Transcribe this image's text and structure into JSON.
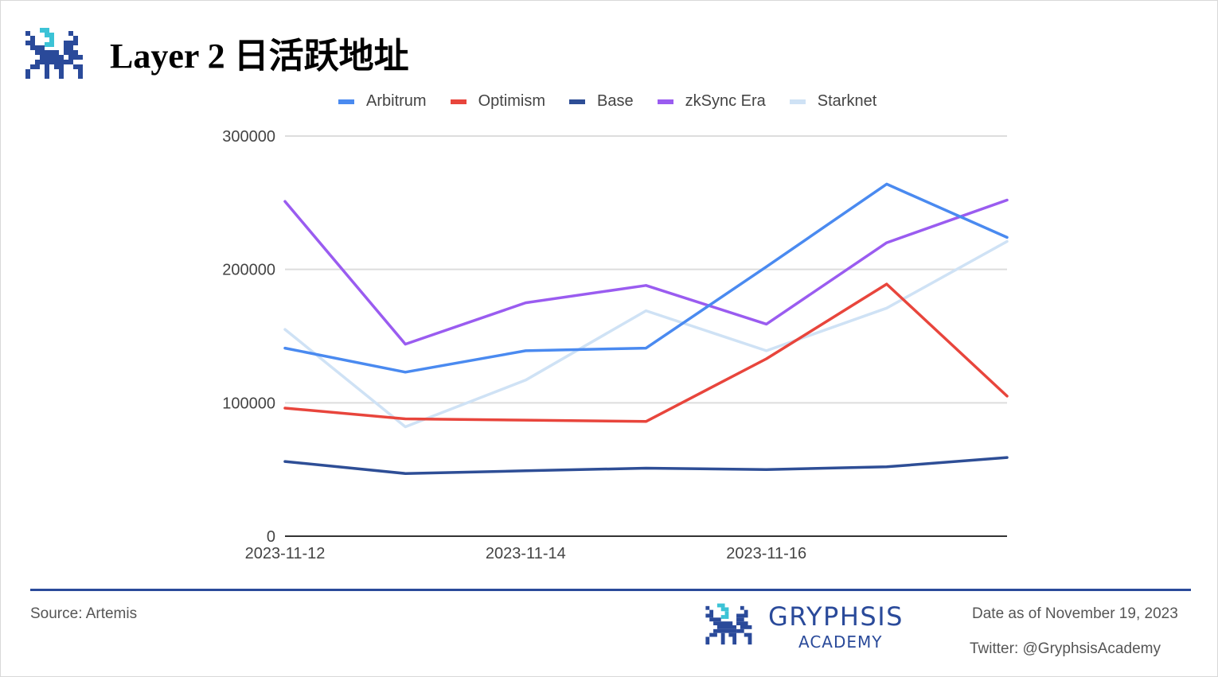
{
  "header": {
    "title": "Layer 2 日活跃地址"
  },
  "colors": {
    "accent": "#2a4a9a",
    "logo_light": "#3cc3d6",
    "grid": "#dddddd",
    "axis": "#333333"
  },
  "chart_data": {
    "type": "line",
    "x": [
      "2023-11-12",
      "2023-11-13",
      "2023-11-14",
      "2023-11-15",
      "2023-11-16",
      "2023-11-17",
      "2023-11-18"
    ],
    "tick_labels": [
      "2023-11-12",
      "2023-11-14",
      "2023-11-16"
    ],
    "yticks": [
      "300000",
      "200000",
      "100000",
      "0"
    ],
    "ylim": [
      0,
      300000
    ],
    "grid": true,
    "legend": "top",
    "series": [
      {
        "name": "Arbitrum",
        "color": "#4a8af0",
        "values": [
          141000,
          123000,
          139000,
          141000,
          202000,
          264000,
          224000
        ]
      },
      {
        "name": "Optimism",
        "color": "#e8453c",
        "values": [
          96000,
          88000,
          87000,
          86000,
          133000,
          189000,
          105000
        ]
      },
      {
        "name": "Base",
        "color": "#2e4e96",
        "values": [
          56000,
          47000,
          49000,
          51000,
          50000,
          52000,
          59000
        ]
      },
      {
        "name": "zkSync Era",
        "color": "#9a5cf0",
        "values": [
          251000,
          144000,
          175000,
          188000,
          159000,
          220000,
          252000
        ]
      },
      {
        "name": "Starknet",
        "color": "#cfe2f5",
        "values": [
          155000,
          82000,
          117000,
          169000,
          139000,
          171000,
          221000
        ]
      }
    ]
  },
  "footer": {
    "source": "Source: Artemis",
    "brand_name": "GRYPHSIS",
    "brand_sub": "ACADEMY",
    "date": "Date as of November 19, 2023",
    "twitter": "Twitter: @GryphsisAcademy"
  }
}
